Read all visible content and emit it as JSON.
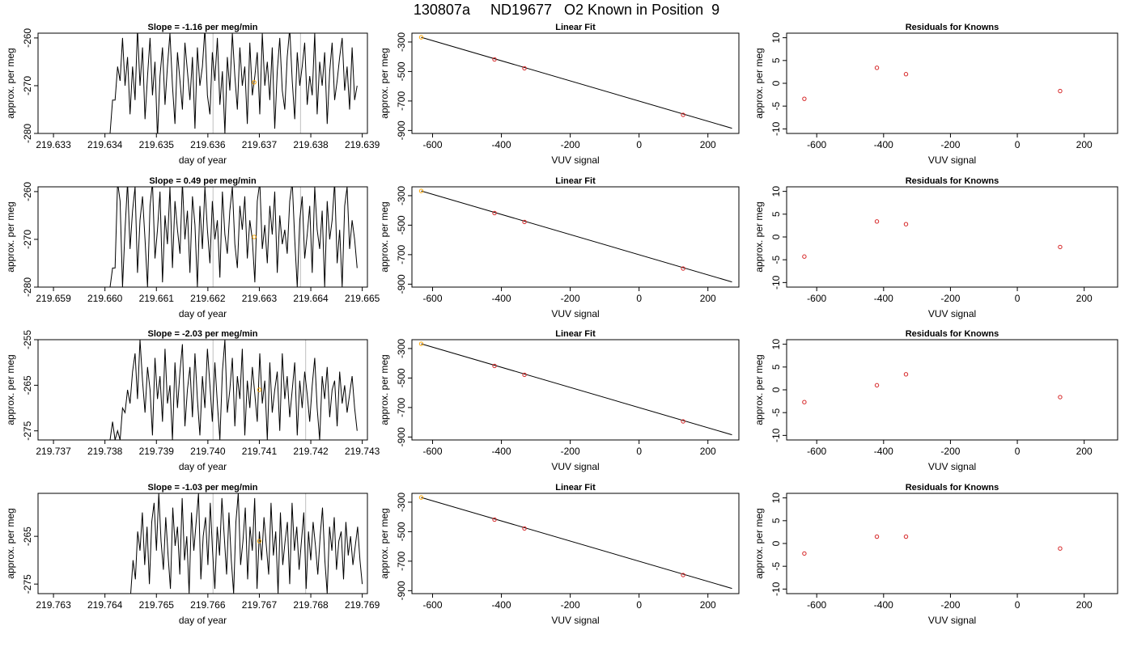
{
  "figure": {
    "title": "130807a     ND19677   O2 Known in Position  9"
  },
  "colors": {
    "line": "#000000",
    "marker_orange": "#ffa500",
    "marker_red": "#d62728",
    "vline_gray": "#bfbfbf",
    "frame": "#000000"
  },
  "chart_data": [
    {
      "row": 1,
      "type": "line",
      "title": "Slope =  -1.16  per meg/min",
      "xlabel": "day of year",
      "ylabel": "approx. per meg",
      "xlim": [
        219.6327,
        219.6391
      ],
      "ylim": [
        -280,
        -259
      ],
      "xticks": [
        219.633,
        219.634,
        219.635,
        219.636,
        219.637,
        219.638,
        219.639
      ],
      "xtick_labels": [
        "219.633",
        "219.634",
        "219.635",
        "219.636",
        "219.637",
        "219.638",
        "219.639"
      ],
      "yticks": [
        -280,
        -270,
        -260
      ],
      "ytick_labels": [
        "-280",
        "-270",
        "-260"
      ],
      "vlines": [
        219.6361,
        219.6378
      ],
      "marker": {
        "x": 219.6369,
        "y": -269.3
      },
      "series": [
        {
          "x_start": 219.6341,
          "x_end": 219.6389,
          "y": [
            -280,
            -273,
            -273,
            -266,
            -269,
            -260,
            -270,
            -264,
            -276,
            -266,
            -273,
            -258,
            -270,
            -262,
            -277,
            -268,
            -260,
            -272,
            -265,
            -281,
            -268,
            -262,
            -274,
            -266,
            -259,
            -270,
            -278,
            -263,
            -269,
            -275,
            -261,
            -267,
            -273,
            -264,
            -279,
            -262,
            -270,
            -266,
            -258,
            -272,
            -276,
            -263,
            -269,
            -260,
            -274,
            -267,
            -280,
            -264,
            -271,
            -259,
            -268,
            -275,
            -262,
            -270,
            -266,
            -278,
            -261,
            -272,
            -268,
            -263,
            -276,
            -259,
            -270,
            -265,
            -273,
            -262,
            -279,
            -267,
            -260,
            -271,
            -275,
            -264,
            -258,
            -269,
            -277,
            -263,
            -270,
            -266,
            -261,
            -274,
            -268,
            -272,
            -259,
            -276,
            -265,
            -270,
            -263,
            -278,
            -267,
            -261,
            -273,
            -269,
            -264,
            -260,
            -271,
            -266,
            -275,
            -262,
            -273,
            -270
          ]
        }
      ]
    },
    {
      "row": 1,
      "type": "line",
      "title": "Linear Fit",
      "xlabel": "VUV signal",
      "ylabel": "approx. per meg",
      "xlim": [
        -660,
        290
      ],
      "ylim": [
        -920,
        -240
      ],
      "xticks": [
        -600,
        -400,
        -200,
        0,
        200
      ],
      "xtick_labels": [
        "-600",
        "-400",
        "-200",
        "0",
        "200"
      ],
      "yticks": [
        -900,
        -700,
        -500,
        -300
      ],
      "ytick_labels": [
        "-900",
        "-700",
        "-500",
        "-300"
      ],
      "fit_line": {
        "x": [
          -633,
          270
        ],
        "y": [
          -268,
          -885
        ]
      },
      "points": [
        {
          "x": -633,
          "y": -268,
          "color": "orange"
        },
        {
          "x": -420,
          "y": -418
        },
        {
          "x": -333,
          "y": -478
        },
        {
          "x": 128,
          "y": -794
        }
      ]
    },
    {
      "row": 1,
      "type": "scatter",
      "title": "Residuals for Knowns",
      "xlabel": "VUV signal",
      "ylabel": "approx. per meg",
      "xlim": [
        -690,
        300
      ],
      "ylim": [
        -11,
        11
      ],
      "xticks": [
        -600,
        -400,
        -200,
        0,
        200
      ],
      "xtick_labels": [
        "-600",
        "-400",
        "-200",
        "0",
        "200"
      ],
      "yticks": [
        -10,
        -5,
        0,
        5,
        10
      ],
      "ytick_labels": [
        "-10",
        "-5",
        "0",
        "5",
        "10"
      ],
      "points": [
        {
          "x": -637,
          "y": -3.4
        },
        {
          "x": -420,
          "y": 3.4
        },
        {
          "x": -333,
          "y": 2.0
        },
        {
          "x": 128,
          "y": -1.7
        }
      ]
    },
    {
      "row": 2,
      "type": "line",
      "title": "Slope =  0.49  per meg/min",
      "xlabel": "day of year",
      "ylabel": "approx. per meg",
      "xlim": [
        219.6587,
        219.6651
      ],
      "ylim": [
        -280,
        -259
      ],
      "xticks": [
        219.659,
        219.66,
        219.661,
        219.662,
        219.663,
        219.664,
        219.665
      ],
      "xtick_labels": [
        "219.659",
        "219.660",
        "219.661",
        "219.662",
        "219.663",
        "219.664",
        "219.665"
      ],
      "yticks": [
        -280,
        -270,
        -260
      ],
      "ytick_labels": [
        "-280",
        "-270",
        "-260"
      ],
      "vlines": [
        219.6621,
        219.6638
      ],
      "marker": {
        "x": 219.6629,
        "y": -269.5
      },
      "series": [
        {
          "x_start": 219.6601,
          "x_end": 219.6649,
          "y": [
            -280,
            -276,
            -276,
            -258,
            -262,
            -280,
            -268,
            -258,
            -272,
            -264,
            -259,
            -277,
            -266,
            -261,
            -270,
            -280,
            -263,
            -258,
            -274,
            -268,
            -260,
            -279,
            -265,
            -271,
            -259,
            -276,
            -262,
            -268,
            -273,
            -258,
            -270,
            -264,
            -277,
            -261,
            -267,
            -280,
            -263,
            -272,
            -259,
            -268,
            -275,
            -262,
            -270,
            -266,
            -278,
            -260,
            -269,
            -273,
            -264,
            -259,
            -271,
            -276,
            -263,
            -268,
            -261,
            -274,
            -266,
            -270,
            -279,
            -262,
            -258,
            -272,
            -267,
            -275,
            -263,
            -269,
            -260,
            -277,
            -265,
            -271,
            -268,
            -273,
            -262,
            -258,
            -270,
            -280,
            -266,
            -261,
            -274,
            -269,
            -263,
            -277,
            -259,
            -268,
            -272,
            -264,
            -280,
            -262,
            -270,
            -266,
            -258,
            -275,
            -268,
            -280,
            -263,
            -259,
            -272,
            -266,
            -270,
            -276
          ]
        }
      ]
    },
    {
      "row": 2,
      "type": "line",
      "title": "Linear Fit",
      "xlabel": "VUV signal",
      "ylabel": "approx. per meg",
      "xlim": [
        -660,
        290
      ],
      "ylim": [
        -920,
        -240
      ],
      "xticks": [
        -600,
        -400,
        -200,
        0,
        200
      ],
      "xtick_labels": [
        "-600",
        "-400",
        "-200",
        "0",
        "200"
      ],
      "yticks": [
        -900,
        -700,
        -500,
        -300
      ],
      "ytick_labels": [
        "-900",
        "-700",
        "-500",
        "-300"
      ],
      "fit_line": {
        "x": [
          -633,
          270
        ],
        "y": [
          -268,
          -885
        ]
      },
      "points": [
        {
          "x": -633,
          "y": -268,
          "color": "orange"
        },
        {
          "x": -420,
          "y": -418
        },
        {
          "x": -333,
          "y": -478
        },
        {
          "x": 128,
          "y": -794
        }
      ]
    },
    {
      "row": 2,
      "type": "scatter",
      "title": "Residuals for Knowns",
      "xlabel": "VUV signal",
      "ylabel": "approx. per meg",
      "xlim": [
        -690,
        300
      ],
      "ylim": [
        -11,
        11
      ],
      "xticks": [
        -600,
        -400,
        -200,
        0,
        200
      ],
      "xtick_labels": [
        "-600",
        "-400",
        "-200",
        "0",
        "200"
      ],
      "yticks": [
        -10,
        -5,
        0,
        5,
        10
      ],
      "ytick_labels": [
        "-10",
        "-5",
        "0",
        "5",
        "10"
      ],
      "points": [
        {
          "x": -637,
          "y": -4.3
        },
        {
          "x": -420,
          "y": 3.4
        },
        {
          "x": -333,
          "y": 2.8
        },
        {
          "x": 128,
          "y": -2.2
        }
      ]
    },
    {
      "row": 3,
      "type": "line",
      "title": "Slope =  -2.03  per meg/min",
      "xlabel": "day of year",
      "ylabel": "approx. per meg",
      "xlim": [
        219.7367,
        219.7431
      ],
      "ylim": [
        -277,
        -255
      ],
      "xticks": [
        219.737,
        219.738,
        219.739,
        219.74,
        219.741,
        219.742,
        219.743
      ],
      "xtick_labels": [
        "219.737",
        "219.738",
        "219.739",
        "219.740",
        "219.741",
        "219.742",
        "219.743"
      ],
      "yticks": [
        -275,
        -265,
        -255
      ],
      "ytick_labels": [
        "-275",
        "-265",
        "-255"
      ],
      "vlines": [
        219.7401,
        219.7419
      ],
      "marker": {
        "x": 219.741,
        "y": -266
      },
      "series": [
        {
          "x_start": 219.7381,
          "x_end": 219.7429,
          "y": [
            -277,
            -273,
            -277,
            -275,
            -277,
            -270,
            -271,
            -266,
            -269,
            -262,
            -258,
            -268,
            -255,
            -264,
            -271,
            -261,
            -266,
            -276,
            -259,
            -268,
            -263,
            -273,
            -257,
            -269,
            -265,
            -277,
            -260,
            -270,
            -262,
            -256,
            -274,
            -266,
            -261,
            -272,
            -258,
            -268,
            -276,
            -263,
            -270,
            -257,
            -265,
            -273,
            -260,
            -269,
            -277,
            -262,
            -255,
            -271,
            -266,
            -259,
            -274,
            -263,
            -268,
            -257,
            -276,
            -264,
            -270,
            -261,
            -267,
            -273,
            -258,
            -269,
            -264,
            -277,
            -260,
            -271,
            -266,
            -262,
            -275,
            -258,
            -268,
            -263,
            -272,
            -266,
            -260,
            -276,
            -264,
            -270,
            -262,
            -267,
            -273,
            -265,
            -259,
            -270,
            -277,
            -263,
            -268,
            -261,
            -272,
            -266,
            -264,
            -274,
            -262,
            -269,
            -265,
            -271,
            -267,
            -263,
            -270,
            -275
          ]
        }
      ]
    },
    {
      "row": 3,
      "type": "line",
      "title": "Linear Fit",
      "xlabel": "VUV signal",
      "ylabel": "approx. per meg",
      "xlim": [
        -660,
        290
      ],
      "ylim": [
        -920,
        -240
      ],
      "xticks": [
        -600,
        -400,
        -200,
        0,
        200
      ],
      "xtick_labels": [
        "-600",
        "-400",
        "-200",
        "0",
        "200"
      ],
      "yticks": [
        -900,
        -700,
        -500,
        -300
      ],
      "ytick_labels": [
        "-900",
        "-700",
        "-500",
        "-300"
      ],
      "fit_line": {
        "x": [
          -633,
          270
        ],
        "y": [
          -268,
          -885
        ]
      },
      "points": [
        {
          "x": -633,
          "y": -268,
          "color": "orange"
        },
        {
          "x": -420,
          "y": -418
        },
        {
          "x": -333,
          "y": -478
        },
        {
          "x": 128,
          "y": -794
        }
      ]
    },
    {
      "row": 3,
      "type": "scatter",
      "title": "Residuals for Knowns",
      "xlabel": "VUV signal",
      "ylabel": "approx. per meg",
      "xlim": [
        -690,
        300
      ],
      "ylim": [
        -11,
        11
      ],
      "xticks": [
        -600,
        -400,
        -200,
        0,
        200
      ],
      "xtick_labels": [
        "-600",
        "-400",
        "-200",
        "0",
        "200"
      ],
      "yticks": [
        -10,
        -5,
        0,
        5,
        10
      ],
      "ytick_labels": [
        "-10",
        "-5",
        "0",
        "5",
        "10"
      ],
      "points": [
        {
          "x": -637,
          "y": -2.7
        },
        {
          "x": -420,
          "y": 1.0
        },
        {
          "x": -333,
          "y": 3.4
        },
        {
          "x": 128,
          "y": -1.6
        }
      ]
    },
    {
      "row": 4,
      "type": "line",
      "title": "Slope =  -1.03  per meg/min",
      "xlabel": "day of year",
      "ylabel": "approx. per meg",
      "xlim": [
        219.7627,
        219.7691
      ],
      "ylim": [
        -277,
        -256
      ],
      "xticks": [
        219.763,
        219.764,
        219.765,
        219.766,
        219.767,
        219.768,
        219.769
      ],
      "xtick_labels": [
        "219.763",
        "219.764",
        "219.765",
        "219.766",
        "219.767",
        "219.768",
        "219.769"
      ],
      "yticks": [
        -275,
        -265
      ],
      "ytick_labels": [
        "-275",
        "-265"
      ],
      "vlines": [
        219.7661,
        219.7679
      ],
      "marker": {
        "x": 219.767,
        "y": -266
      },
      "series": [
        {
          "x_start": 219.7645,
          "x_end": 219.769,
          "y": [
            -277,
            -270,
            -274,
            -264,
            -268,
            -260,
            -271,
            -263,
            -275,
            -262,
            -258,
            -268,
            -256,
            -266,
            -272,
            -261,
            -269,
            -276,
            -259,
            -267,
            -263,
            -273,
            -257,
            -270,
            -265,
            -277,
            -260,
            -268,
            -262,
            -256,
            -274,
            -265,
            -261,
            -271,
            -258,
            -268,
            -276,
            -263,
            -269,
            -257,
            -265,
            -273,
            -260,
            -270,
            -277,
            -262,
            -256,
            -271,
            -266,
            -259,
            -274,
            -263,
            -268,
            -257,
            -276,
            -264,
            -270,
            -261,
            -267,
            -273,
            -258,
            -269,
            -264,
            -277,
            -260,
            -271,
            -266,
            -262,
            -275,
            -258,
            -268,
            -263,
            -272,
            -266,
            -260,
            -276,
            -264,
            -270,
            -262,
            -267,
            -273,
            -265,
            -259,
            -270,
            -277,
            -263,
            -268,
            -261,
            -272,
            -266,
            -264,
            -274,
            -262,
            -269,
            -265,
            -271,
            -267,
            -263,
            -270,
            -275
          ]
        }
      ]
    },
    {
      "row": 4,
      "type": "line",
      "title": "Linear Fit",
      "xlabel": "VUV signal",
      "ylabel": "approx. per meg",
      "xlim": [
        -660,
        290
      ],
      "ylim": [
        -920,
        -240
      ],
      "xticks": [
        -600,
        -400,
        -200,
        0,
        200
      ],
      "xtick_labels": [
        "-600",
        "-400",
        "-200",
        "0",
        "200"
      ],
      "yticks": [
        -900,
        -700,
        -500,
        -300
      ],
      "ytick_labels": [
        "-900",
        "-700",
        "-500",
        "-300"
      ],
      "fit_line": {
        "x": [
          -633,
          270
        ],
        "y": [
          -268,
          -885
        ]
      },
      "points": [
        {
          "x": -633,
          "y": -268,
          "color": "orange"
        },
        {
          "x": -420,
          "y": -418
        },
        {
          "x": -333,
          "y": -478
        },
        {
          "x": 128,
          "y": -794
        }
      ]
    },
    {
      "row": 4,
      "type": "scatter",
      "title": "Residuals for Knowns",
      "xlabel": "VUV signal",
      "ylabel": "approx. per meg",
      "xlim": [
        -690,
        300
      ],
      "ylim": [
        -11,
        11
      ],
      "xticks": [
        -600,
        -400,
        -200,
        0,
        200
      ],
      "xtick_labels": [
        "-600",
        "-400",
        "-200",
        "0",
        "200"
      ],
      "yticks": [
        -10,
        -5,
        0,
        5,
        10
      ],
      "ytick_labels": [
        "-10",
        "-5",
        "0",
        "5",
        "10"
      ],
      "points": [
        {
          "x": -637,
          "y": -2.2
        },
        {
          "x": -420,
          "y": 1.5
        },
        {
          "x": -333,
          "y": 1.5
        },
        {
          "x": 128,
          "y": -1.1
        }
      ]
    }
  ]
}
